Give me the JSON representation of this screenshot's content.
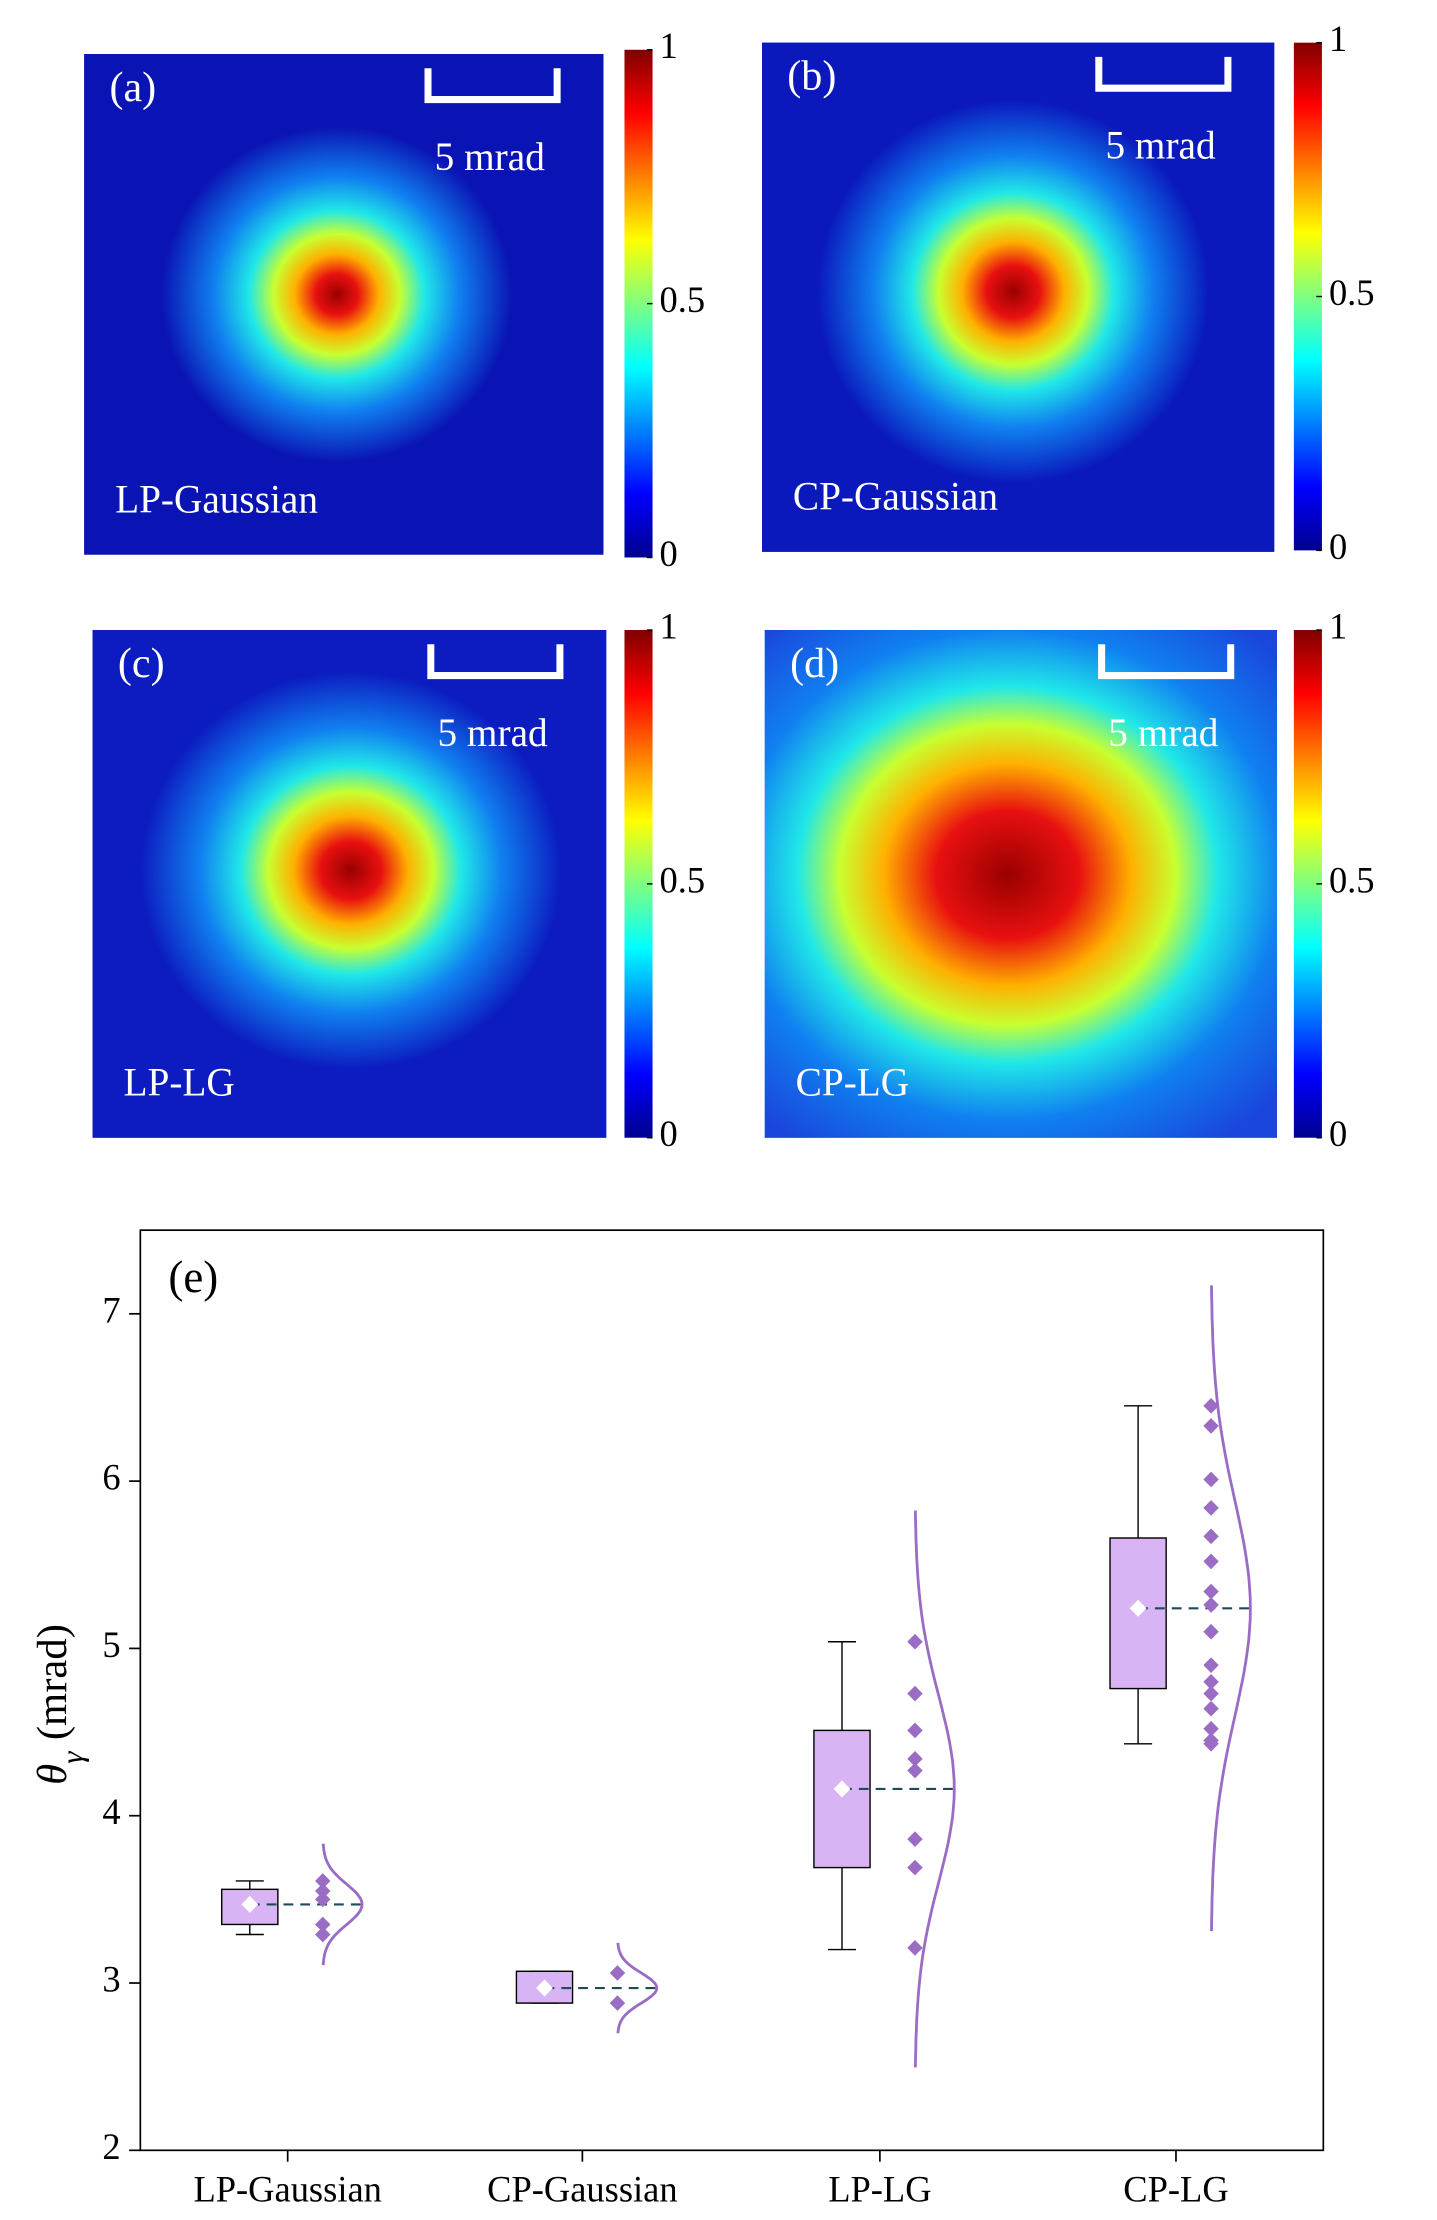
{
  "chart_data": [
    {
      "type": "heatmap",
      "label": "(a)",
      "title": "LP-Gaussian",
      "scale_label": "5 mrad",
      "clim": [
        0,
        1
      ],
      "cticks": [
        0,
        0.5,
        1
      ]
    },
    {
      "type": "heatmap",
      "label": "(b)",
      "title": "CP-Gaussian",
      "scale_label": "5 mrad",
      "clim": [
        0,
        1
      ],
      "cticks": [
        0,
        0.5,
        1
      ]
    },
    {
      "type": "heatmap",
      "label": "(c)",
      "title": "LP-LG",
      "scale_label": "5 mrad",
      "clim": [
        0,
        1
      ],
      "cticks": [
        0,
        0.5,
        1
      ]
    },
    {
      "type": "heatmap",
      "label": "(d)",
      "title": "CP-LG",
      "scale_label": "5 mrad",
      "clim": [
        0,
        1
      ],
      "cticks": [
        0,
        0.5,
        1
      ]
    },
    {
      "type": "box",
      "label": "(e)",
      "ylabel": {
        "symbol": "θ",
        "subscript": "γ",
        "unit": "(mrad)"
      },
      "categories": [
        "LP-Gaussian",
        "CP-Gaussian",
        "LP-LG",
        "CP-LG"
      ],
      "ylim": [
        2,
        7.5
      ],
      "yticks": [
        2,
        3,
        4,
        5,
        6,
        7
      ],
      "box_color": "#d8b4f4",
      "point_color": "#9a6cc4",
      "boxes": [
        {
          "whisker_low": 3.29,
          "q1": 3.35,
          "mean": 3.47,
          "q3": 3.56,
          "whisker_high": 3.61,
          "points": [
            3.61,
            3.55,
            3.5,
            3.35,
            3.29
          ]
        },
        {
          "whisker_low": 2.88,
          "q1": 2.88,
          "mean": 2.97,
          "q3": 3.07,
          "whisker_high": 3.07,
          "points": [
            3.06,
            2.88
          ]
        },
        {
          "whisker_low": 3.2,
          "q1": 3.69,
          "mean": 4.16,
          "q3": 4.51,
          "whisker_high": 5.04,
          "points": [
            5.04,
            4.73,
            4.51,
            4.34,
            4.27,
            3.86,
            3.69,
            3.21
          ]
        },
        {
          "whisker_low": 4.43,
          "q1": 4.76,
          "mean": 5.24,
          "q3": 5.66,
          "whisker_high": 6.45,
          "points": [
            6.45,
            6.33,
            6.01,
            5.84,
            5.67,
            5.52,
            5.34,
            5.26,
            5.1,
            4.9,
            4.8,
            4.73,
            4.64,
            4.52,
            4.45,
            4.43
          ]
        }
      ]
    }
  ]
}
